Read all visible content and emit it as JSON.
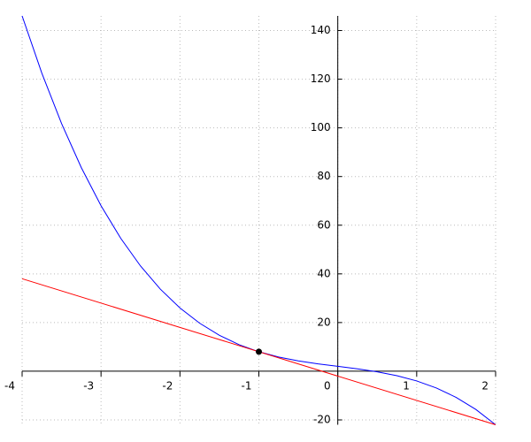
{
  "chart_data": {
    "type": "line",
    "series": [
      {
        "color": "#0000ff",
        "style": "line",
        "x": [
          -4,
          -3.75,
          -3.5,
          -3.25,
          -3,
          -2.75,
          -2.5,
          -2.25,
          -2,
          -1.75,
          -1.5,
          -1.25,
          -1,
          -0.75,
          -0.5,
          -0.25,
          0,
          0.25,
          0.5,
          0.75,
          1,
          1.25,
          1.5,
          1.75,
          2
        ],
        "values": [
          146,
          122.469,
          101.75,
          83.656,
          68,
          54.594,
          43.25,
          33.781,
          26,
          19.719,
          14.75,
          10.906,
          8,
          5.844,
          4.25,
          3.031,
          2,
          0.969,
          -0.25,
          -1.844,
          -4,
          -6.906,
          -10.75,
          -15.719,
          -22
        ]
      },
      {
        "color": "#ff0000",
        "style": "line",
        "x": [
          -4,
          2
        ],
        "values": [
          38,
          -22
        ]
      },
      {
        "color": "#000000",
        "style": "marker",
        "x": [
          -1
        ],
        "values": [
          8
        ]
      }
    ],
    "xlim": [
      -4,
      2
    ],
    "ylim": [
      -22,
      146
    ],
    "xticks": [
      -4,
      -3,
      -2,
      -1,
      0,
      1,
      2
    ],
    "yticks": [
      -20,
      20,
      40,
      60,
      80,
      100,
      120,
      140
    ],
    "grid": true
  }
}
